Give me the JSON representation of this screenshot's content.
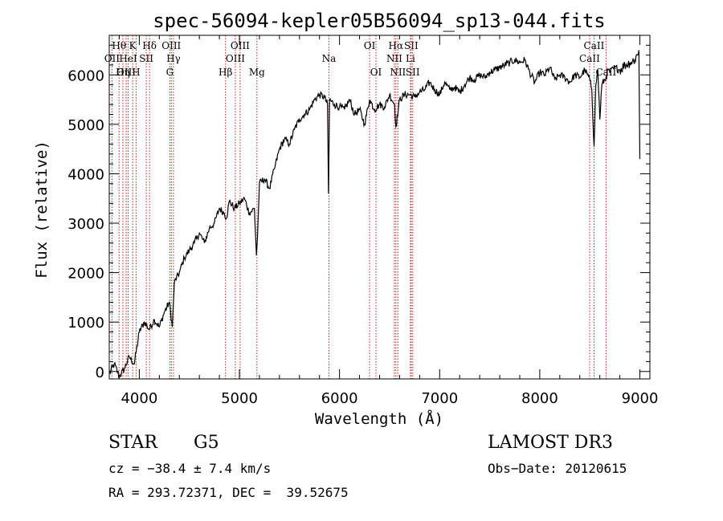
{
  "chart_data": {
    "type": "line",
    "title": "spec-56094-kepler05B56094_sp13-044.fits",
    "xlabel": "Wavelength (Å)",
    "ylabel": "Flux (relative)",
    "xlim": [
      3700,
      9100
    ],
    "ylim": [
      -150,
      6800
    ],
    "xticks": [
      4000,
      5000,
      6000,
      7000,
      8000,
      9000
    ],
    "yticks": [
      0,
      1000,
      2000,
      3000,
      4000,
      5000,
      6000
    ],
    "series": [
      {
        "name": "flux",
        "x": [
          3700,
          3750,
          3800,
          3850,
          3900,
          3950,
          4000,
          4050,
          4100,
          4150,
          4200,
          4250,
          4300,
          4330,
          4350,
          4400,
          4450,
          4500,
          4550,
          4600,
          4650,
          4700,
          4750,
          4800,
          4850,
          4870,
          4900,
          4950,
          5000,
          5050,
          5100,
          5150,
          5170,
          5180,
          5200,
          5250,
          5300,
          5350,
          5400,
          5450,
          5500,
          5550,
          5600,
          5650,
          5700,
          5750,
          5800,
          5850,
          5880,
          5890,
          5900,
          5950,
          6000,
          6050,
          6100,
          6150,
          6200,
          6250,
          6300,
          6350,
          6400,
          6450,
          6500,
          6550,
          6563,
          6600,
          6650,
          6700,
          6750,
          6800,
          6850,
          6900,
          6950,
          7000,
          7050,
          7100,
          7150,
          7200,
          7250,
          7300,
          7350,
          7400,
          7450,
          7500,
          7550,
          7600,
          7650,
          7700,
          7750,
          7800,
          7850,
          7900,
          7950,
          8000,
          8050,
          8100,
          8150,
          8200,
          8250,
          8300,
          8350,
          8400,
          8450,
          8500,
          8520,
          8542,
          8560,
          8580,
          8600,
          8620,
          8662,
          8680,
          8700,
          8750,
          8800,
          8850,
          8900,
          8950,
          8990,
          9000
        ],
        "values": [
          -50,
          150,
          -100,
          50,
          300,
          150,
          800,
          1000,
          850,
          1050,
          900,
          1200,
          1400,
          900,
          1800,
          2000,
          2300,
          2450,
          2600,
          2800,
          2600,
          2900,
          3000,
          3300,
          3200,
          3100,
          3450,
          3300,
          3400,
          3500,
          3200,
          3300,
          2350,
          2700,
          3800,
          3900,
          3700,
          4100,
          4500,
          4700,
          4600,
          4900,
          5100,
          5200,
          5300,
          5500,
          5600,
          5550,
          5400,
          3600,
          5500,
          5400,
          5350,
          5300,
          5500,
          5200,
          5300,
          5000,
          5500,
          5300,
          5400,
          5350,
          5600,
          5400,
          4950,
          5500,
          5600,
          5600,
          5550,
          5650,
          5700,
          5850,
          5700,
          5600,
          5850,
          5700,
          5750,
          5650,
          5800,
          5950,
          5900,
          6000,
          5950,
          6050,
          6100,
          6150,
          6200,
          6250,
          6300,
          6250,
          6300,
          6050,
          5850,
          6050,
          6000,
          6150,
          5900,
          6000,
          5950,
          5850,
          6000,
          5950,
          6100,
          5900,
          5700,
          4550,
          5800,
          6100,
          5100,
          5800,
          5950,
          6100,
          6050,
          6150,
          6100,
          6200,
          6250,
          6300,
          6500,
          4300
        ]
      }
    ]
  },
  "emission_lines": [
    {
      "label": "Hθ",
      "x": 3798,
      "row": 1
    },
    {
      "label": "OII",
      "x": 3727,
      "row": 2
    },
    {
      "label": "OIII",
      "x": 3869,
      "row": 3
    },
    {
      "label": "K",
      "x": 3934,
      "row": 1
    },
    {
      "label": "HeI",
      "x": 3889,
      "row": 2
    },
    {
      "label": "Hη",
      "x": 3836,
      "row": 3
    },
    {
      "label": "H",
      "x": 3968,
      "row": 3
    },
    {
      "label": "SII",
      "x": 4070,
      "row": 2
    },
    {
      "label": "Hδ",
      "x": 4102,
      "row": 1
    },
    {
      "label": "OIII",
      "x": 4320,
      "row": 1
    },
    {
      "label": "Hγ",
      "x": 4341,
      "row": 2
    },
    {
      "label": "G",
      "x": 4305,
      "row": 3
    },
    {
      "label": "OIII",
      "x": 5007,
      "row": 1
    },
    {
      "label": "OIII",
      "x": 4959,
      "row": 2
    },
    {
      "label": "Hβ",
      "x": 4861,
      "row": 3
    },
    {
      "label": "Mg",
      "x": 5175,
      "row": 3
    },
    {
      "label": "Na",
      "x": 5894,
      "row": 2
    },
    {
      "label": "OI",
      "x": 6300,
      "row": 1
    },
    {
      "label": "OI",
      "x": 6364,
      "row": 3
    },
    {
      "label": "Hα",
      "x": 6563,
      "row": 1
    },
    {
      "label": "SII",
      "x": 6716,
      "row": 1
    },
    {
      "label": "NII",
      "x": 6548,
      "row": 2
    },
    {
      "label": "Li",
      "x": 6708,
      "row": 2
    },
    {
      "label": "NII",
      "x": 6583,
      "row": 3
    },
    {
      "label": "SII",
      "x": 6731,
      "row": 3
    },
    {
      "label": "CaII",
      "x": 8542,
      "row": 1
    },
    {
      "label": "CaII",
      "x": 8498,
      "row": 2
    },
    {
      "label": "CaII",
      "x": 8662,
      "row": 3
    }
  ],
  "info": {
    "class_label": "STAR",
    "subclass": "G5",
    "survey": "LAMOST DR3",
    "cz": "cz = −38.4 ± 7.4 km/s",
    "obs_date": "Obs−Date: 20120615",
    "coords": "RA = 293.72371, DEC =  39.52675"
  }
}
